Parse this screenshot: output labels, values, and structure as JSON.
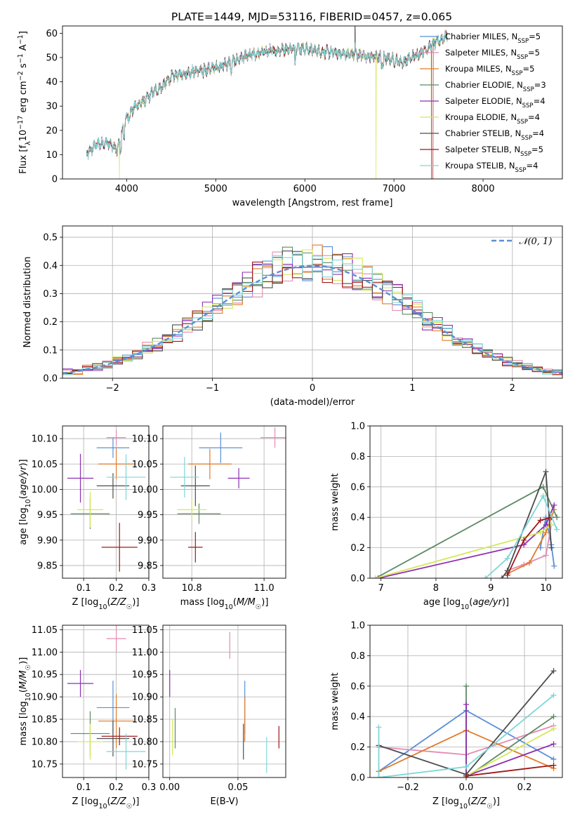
{
  "title": "PLATE=1449, MJD=53116, FIBERID=0457, z=0.065",
  "colors": {
    "Chabrier MILES": "#5b8fd6",
    "Salpeter MILES": "#e58bb2",
    "Kroupa MILES": "#e07b2a",
    "Chabrier ELODIE": "#5e8a66",
    "Salpeter ELODIE": "#8d2fb0",
    "Kroupa ELODIE": "#d4e85a",
    "Chabrier STELIB": "#4d4d4d",
    "Salpeter STELIB": "#a01818",
    "Kroupa STELIB": "#7fd6d6"
  },
  "legend": [
    {
      "name": "Chabrier MILES",
      "n": "5"
    },
    {
      "name": "Salpeter MILES",
      "n": "5"
    },
    {
      "name": "Kroupa MILES",
      "n": "5"
    },
    {
      "name": "Chabrier ELODIE",
      "n": "3"
    },
    {
      "name": "Salpeter ELODIE",
      "n": "4"
    },
    {
      "name": "Kroupa ELODIE",
      "n": "4"
    },
    {
      "name": "Chabrier STELIB",
      "n": "4"
    },
    {
      "name": "Salpeter STELIB",
      "n": "5"
    },
    {
      "name": "Kroupa STELIB",
      "n": "4"
    }
  ],
  "legend_fmt": {
    "prefix": ", N",
    "sub": "SSP",
    "suffix": "="
  },
  "chart_data": [
    {
      "id": "spectrum",
      "type": "line",
      "xlabel": "wavelength [Angstrom, rest frame]",
      "ylabel": "Flux [f_λ 10^-17 erg cm^-2 s^-1 A^-1]",
      "xlim": [
        3280,
        8890
      ],
      "ylim": [
        0,
        63
      ],
      "xticks": [
        4000,
        5000,
        6000,
        7000,
        8000
      ],
      "yticks": [
        0,
        10,
        20,
        30,
        40,
        50,
        60
      ],
      "continuum": [
        [
          3550,
          10
        ],
        [
          3650,
          14
        ],
        [
          3780,
          15
        ],
        [
          3900,
          12
        ],
        [
          3980,
          24
        ],
        [
          4100,
          30
        ],
        [
          4200,
          32
        ],
        [
          4300,
          36
        ],
        [
          4400,
          38
        ],
        [
          4500,
          42
        ],
        [
          4700,
          44
        ],
        [
          4900,
          45
        ],
        [
          5100,
          47
        ],
        [
          5300,
          50
        ],
        [
          5500,
          52
        ],
        [
          5700,
          53
        ],
        [
          5900,
          54
        ],
        [
          6100,
          53
        ],
        [
          6300,
          52
        ],
        [
          6600,
          51
        ],
        [
          6900,
          50
        ],
        [
          7100,
          48
        ],
        [
          7300,
          52
        ],
        [
          7550,
          58
        ],
        [
          7600,
          59
        ]
      ],
      "models_span": [
        3550,
        7600
      ],
      "kroupa_elodie_drops": [
        3920,
        6800,
        7420
      ],
      "legend_loc": "upper right"
    },
    {
      "id": "residuals",
      "type": "histogram",
      "xlabel": "(data-model)/error",
      "ylabel": "Normed distribution",
      "xlim": [
        -2.5,
        2.5
      ],
      "ylim": [
        0,
        0.54
      ],
      "xticks": [
        -2,
        -1,
        0,
        1,
        2
      ],
      "yticks": [
        0.0,
        0.1,
        0.2,
        0.3,
        0.4,
        0.5
      ],
      "bin_width": 0.1,
      "reference_curve": {
        "name": "𝒩(0, 1)",
        "mean": 0,
        "sigma": 1,
        "style": "dashed"
      },
      "legend_loc": "upper right"
    },
    {
      "id": "age_vs_Z",
      "type": "errorbar",
      "xlabel": "Z [log10(Z/Z☉)]",
      "ylabel": "age [log10(age/yr)]",
      "xlim": [
        0.035,
        0.3
      ],
      "ylim": [
        9.825,
        10.125
      ],
      "xticks": [
        0.1,
        0.2,
        0.3
      ],
      "yticks": [
        9.85,
        9.9,
        9.95,
        10.0,
        10.05,
        10.1
      ],
      "points": [
        {
          "model": "Chabrier MILES",
          "x": 0.19,
          "xerr": 0.05,
          "y": 10.082,
          "yerr": 0.02
        },
        {
          "model": "Salpeter MILES",
          "x": 0.2,
          "xerr": 0.03,
          "y": 10.102,
          "yerr": 0.015
        },
        {
          "model": "Kroupa MILES",
          "x": 0.2,
          "xerr": 0.055,
          "y": 10.05,
          "yerr": 0.03
        },
        {
          "model": "Chabrier ELODIE",
          "x": 0.12,
          "xerr": 0.06,
          "y": 9.952,
          "yerr": 0.03
        },
        {
          "model": "Salpeter ELODIE",
          "x": 0.09,
          "xerr": 0.04,
          "y": 10.022,
          "yerr": 0.048
        },
        {
          "model": "Kroupa ELODIE",
          "x": 0.12,
          "xerr": 0.04,
          "y": 9.96,
          "yerr": 0.035
        },
        {
          "model": "Chabrier STELIB",
          "x": 0.19,
          "xerr": 0.05,
          "y": 10.007,
          "yerr": 0.025
        },
        {
          "model": "Salpeter STELIB",
          "x": 0.21,
          "xerr": 0.055,
          "y": 9.886,
          "yerr": 0.048
        },
        {
          "model": "Kroupa STELIB",
          "x": 0.23,
          "xerr": 0.06,
          "y": 10.024,
          "yerr": 0.045
        }
      ]
    },
    {
      "id": "age_vs_mass",
      "type": "errorbar",
      "xlabel": "mass [log10(M/M☉)]",
      "ylabel": "",
      "xlim": [
        10.72,
        11.06
      ],
      "ylim": [
        9.825,
        10.125
      ],
      "xticks": [
        10.8,
        11.0
      ],
      "yticks": [
        9.85,
        9.9,
        9.95,
        10.0,
        10.05,
        10.1
      ],
      "points": [
        {
          "model": "Chabrier MILES",
          "x": 10.88,
          "xerr": 0.06,
          "y": 10.082,
          "yerr": 0.03
        },
        {
          "model": "Salpeter MILES",
          "x": 11.03,
          "xerr": 0.04,
          "y": 10.102,
          "yerr": 0.02
        },
        {
          "model": "Kroupa MILES",
          "x": 10.85,
          "xerr": 0.06,
          "y": 10.05,
          "yerr": 0.03
        },
        {
          "model": "Chabrier ELODIE",
          "x": 10.82,
          "xerr": 0.06,
          "y": 9.952,
          "yerr": 0.02
        },
        {
          "model": "Salpeter ELODIE",
          "x": 10.93,
          "xerr": 0.03,
          "y": 10.022,
          "yerr": 0.02
        },
        {
          "model": "Kroupa ELODIE",
          "x": 10.8,
          "xerr": 0.04,
          "y": 9.96,
          "yerr": 0.02
        },
        {
          "model": "Chabrier STELIB",
          "x": 10.81,
          "xerr": 0.04,
          "y": 10.007,
          "yerr": 0.04
        },
        {
          "model": "Salpeter STELIB",
          "x": 10.81,
          "xerr": 0.02,
          "y": 9.886,
          "yerr": 0.03
        },
        {
          "model": "Kroupa STELIB",
          "x": 10.78,
          "xerr": 0.04,
          "y": 10.024,
          "yerr": 0.04
        }
      ]
    },
    {
      "id": "massweight_vs_age",
      "type": "line",
      "xlabel": "age [log10(age/yr)]",
      "ylabel": "mass weight",
      "xlim": [
        6.8,
        10.3
      ],
      "ylim": [
        0,
        1
      ],
      "xticks": [
        7,
        8,
        9,
        10
      ],
      "yticks": [
        0.0,
        0.2,
        0.4,
        0.6,
        0.8,
        1.0
      ],
      "series": [
        {
          "model": "Chabrier MILES",
          "points": [
            [
              9.9,
              0.2
            ],
            [
              10.0,
              0.4
            ],
            [
              10.1,
              0.22
            ],
            [
              10.15,
              0.08
            ]
          ]
        },
        {
          "model": "Salpeter MILES",
          "points": [
            [
              9.3,
              0.05
            ],
            [
              9.6,
              0.09
            ],
            [
              10.0,
              0.15
            ],
            [
              10.1,
              0.35
            ]
          ]
        },
        {
          "model": "Kroupa MILES",
          "points": [
            [
              9.3,
              0.03
            ],
            [
              9.7,
              0.1
            ],
            [
              10.0,
              0.3
            ],
            [
              10.15,
              0.45
            ]
          ]
        },
        {
          "model": "Chabrier ELODIE",
          "points": [
            [
              6.9,
              0.0
            ],
            [
              9.95,
              0.6
            ],
            [
              10.2,
              0.4
            ]
          ]
        },
        {
          "model": "Salpeter ELODIE",
          "points": [
            [
              6.95,
              0.0
            ],
            [
              9.6,
              0.22
            ],
            [
              10.0,
              0.35
            ],
            [
              10.15,
              0.48
            ]
          ]
        },
        {
          "model": "Kroupa ELODIE",
          "points": [
            [
              6.9,
              0.0
            ],
            [
              9.9,
              0.3
            ],
            [
              10.1,
              0.35
            ]
          ]
        },
        {
          "model": "Chabrier STELIB",
          "points": [
            [
              9.2,
              0.0
            ],
            [
              9.3,
              0.05
            ],
            [
              10.0,
              0.7
            ],
            [
              10.1,
              0.2
            ]
          ]
        },
        {
          "model": "Salpeter STELIB",
          "points": [
            [
              9.3,
              0.02
            ],
            [
              9.6,
              0.25
            ],
            [
              9.9,
              0.38
            ],
            [
              10.1,
              0.4
            ]
          ]
        },
        {
          "model": "Kroupa STELIB",
          "points": [
            [
              8.9,
              0.0
            ],
            [
              9.3,
              0.13
            ],
            [
              9.95,
              0.54
            ],
            [
              10.2,
              0.32
            ]
          ]
        }
      ]
    },
    {
      "id": "mass_vs_Z",
      "type": "errorbar",
      "xlabel": "Z [log10(Z/Z☉)]",
      "ylabel": "mass [log10(M/M☉)]",
      "xlim": [
        0.035,
        0.3
      ],
      "ylim": [
        10.72,
        11.06
      ],
      "xticks": [
        0.1,
        0.2,
        0.3
      ],
      "yticks": [
        10.75,
        10.8,
        10.85,
        10.9,
        10.95,
        11.0,
        11.05
      ],
      "points": [
        {
          "model": "Chabrier MILES",
          "x": 0.19,
          "xerr": 0.05,
          "y": 10.876,
          "yerr": 0.06
        },
        {
          "model": "Salpeter MILES",
          "x": 0.2,
          "xerr": 0.03,
          "y": 11.03,
          "yerr": 0.03
        },
        {
          "model": "Kroupa MILES",
          "x": 0.2,
          "xerr": 0.055,
          "y": 10.846,
          "yerr": 0.06
        },
        {
          "model": "Chabrier ELODIE",
          "x": 0.12,
          "xerr": 0.06,
          "y": 10.818,
          "yerr": 0.05
        },
        {
          "model": "Salpeter ELODIE",
          "x": 0.09,
          "xerr": 0.04,
          "y": 10.93,
          "yerr": 0.03
        },
        {
          "model": "Kroupa ELODIE",
          "x": 0.12,
          "xerr": 0.04,
          "y": 10.8,
          "yerr": 0.04
        },
        {
          "model": "Chabrier STELIB",
          "x": 0.19,
          "xerr": 0.05,
          "y": 10.807,
          "yerr": 0.04
        },
        {
          "model": "Salpeter STELIB",
          "x": 0.21,
          "xerr": 0.055,
          "y": 10.812,
          "yerr": 0.02
        },
        {
          "model": "Kroupa STELIB",
          "x": 0.23,
          "xerr": 0.06,
          "y": 10.778,
          "yerr": 0.04
        }
      ]
    },
    {
      "id": "mass_vs_EBV",
      "type": "errorbar",
      "xlabel": "E(B-V)",
      "ylabel": "",
      "xlim": [
        -0.005,
        0.085
      ],
      "ylim": [
        10.72,
        11.06
      ],
      "xticks": [
        0.0,
        0.05
      ],
      "yticks": [
        10.75,
        10.8,
        10.85,
        10.9,
        10.95,
        11.0,
        11.05
      ],
      "points": [
        {
          "model": "Chabrier MILES",
          "x": 0.055,
          "xerr": 0.0,
          "y": 10.876,
          "yerr": 0.06
        },
        {
          "model": "Salpeter MILES",
          "x": 0.044,
          "xerr": 0.0,
          "y": 11.015,
          "yerr": 0.03
        },
        {
          "model": "Kroupa MILES",
          "x": 0.055,
          "xerr": 0.0,
          "y": 10.85,
          "yerr": 0.05
        },
        {
          "model": "Chabrier ELODIE",
          "x": 0.004,
          "xerr": 0.0,
          "y": 10.83,
          "yerr": 0.045
        },
        {
          "model": "Salpeter ELODIE",
          "x": 0.0,
          "xerr": 0.0,
          "y": 10.93,
          "yerr": 0.03
        },
        {
          "model": "Kroupa ELODIE",
          "x": 0.002,
          "xerr": 0.0,
          "y": 10.81,
          "yerr": 0.04
        },
        {
          "model": "Chabrier STELIB",
          "x": 0.054,
          "xerr": 0.0,
          "y": 10.8,
          "yerr": 0.04
        },
        {
          "model": "Salpeter STELIB",
          "x": 0.08,
          "xerr": 0.0,
          "y": 10.81,
          "yerr": 0.025
        },
        {
          "model": "Kroupa STELIB",
          "x": 0.071,
          "xerr": 0.0,
          "y": 10.77,
          "yerr": 0.04
        }
      ]
    },
    {
      "id": "massweight_vs_Z",
      "type": "line",
      "xlabel": "Z [log10(Z/Z☉)]",
      "ylabel": "mass weight",
      "xlim": [
        -0.33,
        0.33
      ],
      "ylim": [
        0,
        1
      ],
      "xticks": [
        -0.2,
        0.0,
        0.2
      ],
      "yticks": [
        0.0,
        0.2,
        0.4,
        0.6,
        0.8,
        1.0
      ],
      "series": [
        {
          "model": "Chabrier MILES",
          "points": [
            [
              -0.3,
              0.04
            ],
            [
              0.0,
              0.44
            ],
            [
              0.3,
              0.12
            ]
          ]
        },
        {
          "model": "Salpeter MILES",
          "points": [
            [
              -0.3,
              0.2
            ],
            [
              0.0,
              0.15
            ],
            [
              0.3,
              0.34
            ]
          ]
        },
        {
          "model": "Kroupa MILES",
          "points": [
            [
              -0.3,
              0.04
            ],
            [
              0.0,
              0.31
            ],
            [
              0.3,
              0.06
            ]
          ]
        },
        {
          "model": "Chabrier ELODIE",
          "points": [
            [
              0.0,
              0.6
            ],
            [
              0.0,
              0.0
            ],
            [
              0.3,
              0.4
            ]
          ]
        },
        {
          "model": "Salpeter ELODIE",
          "points": [
            [
              0.0,
              0.48
            ],
            [
              0.0,
              0.01
            ],
            [
              0.3,
              0.22
            ]
          ]
        },
        {
          "model": "Kroupa ELODIE",
          "points": [
            [
              0.0,
              0.01
            ],
            [
              0.3,
              0.32
            ]
          ]
        },
        {
          "model": "Chabrier STELIB",
          "points": [
            [
              -0.3,
              0.21
            ],
            [
              0.0,
              0.02
            ],
            [
              0.3,
              0.7
            ]
          ]
        },
        {
          "model": "Salpeter STELIB",
          "points": [
            [
              0.0,
              0.01
            ],
            [
              0.3,
              0.08
            ]
          ]
        },
        {
          "model": "Kroupa STELIB",
          "points": [
            [
              -0.3,
              0.33
            ],
            [
              -0.3,
              0.0
            ],
            [
              0.0,
              0.07
            ],
            [
              0.3,
              0.54
            ]
          ]
        }
      ]
    }
  ]
}
